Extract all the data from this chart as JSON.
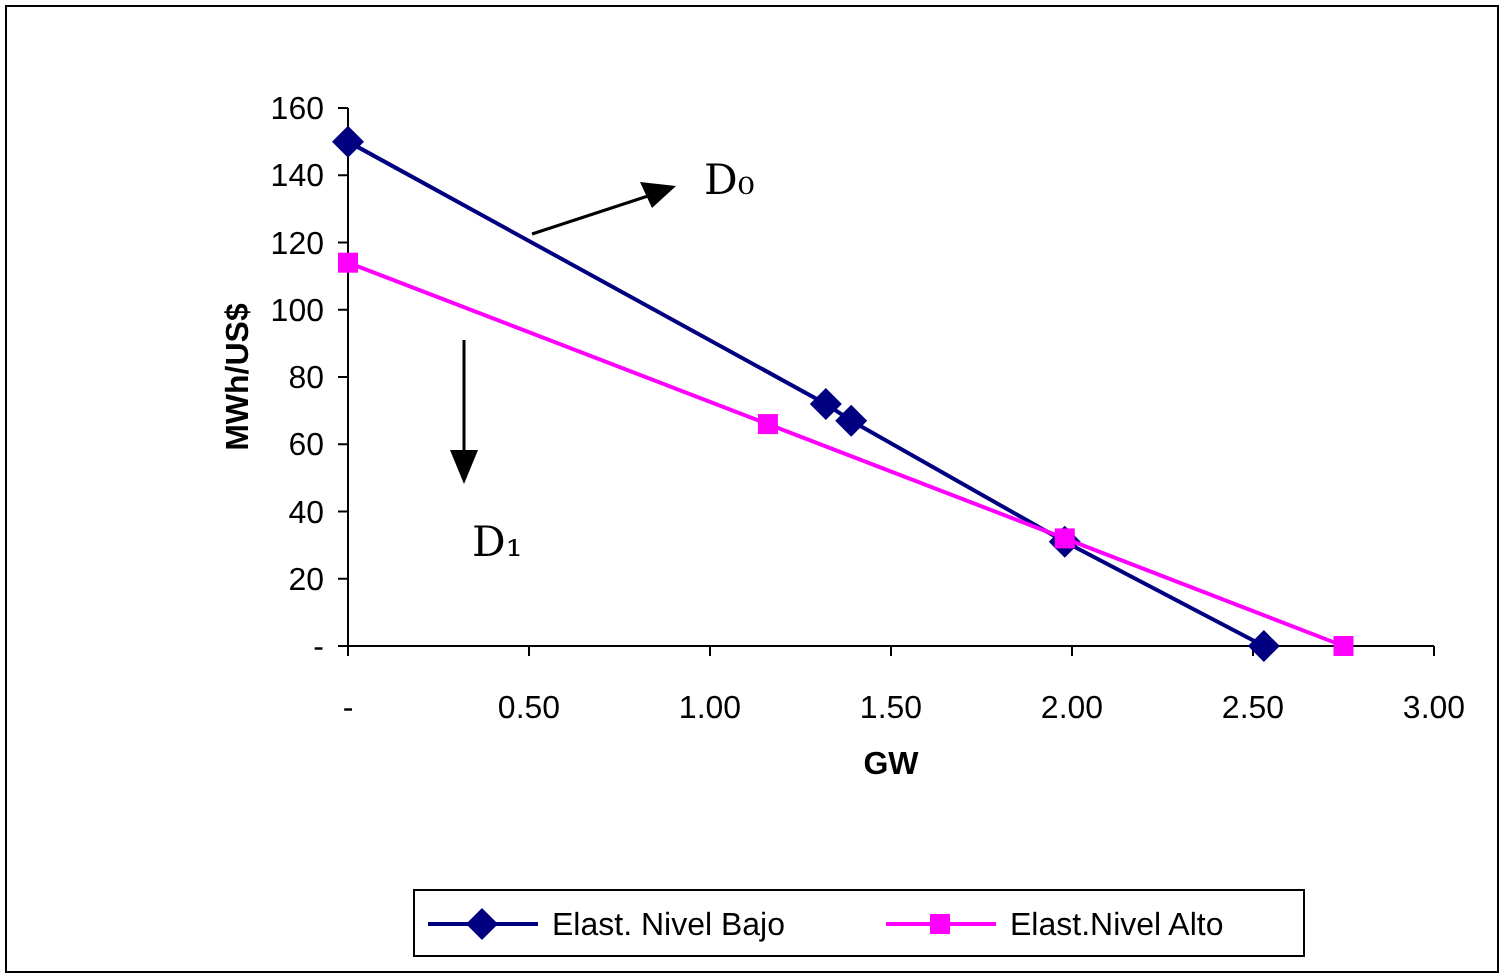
{
  "chart_data": {
    "type": "line",
    "xlabel": "GW",
    "ylabel": "MWh/US$",
    "series": [
      {
        "name": "Elast. Nivel Bajo",
        "color": "#000080",
        "marker": "diamond",
        "x": [
          0,
          1.32,
          1.39,
          1.98,
          2.53
        ],
        "values": [
          150,
          72,
          67,
          31,
          0
        ]
      },
      {
        "name": "Elast.Nivel Alto",
        "color": "#ff00ff",
        "marker": "square",
        "x": [
          0,
          1.16,
          1.98,
          2.75
        ],
        "values": [
          114,
          66,
          32,
          0
        ]
      }
    ],
    "xlim": [
      0,
      3
    ],
    "xticks": [
      {
        "value": 0,
        "label": "-"
      },
      {
        "value": 0.5,
        "label": "0.50"
      },
      {
        "value": 1,
        "label": "1.00"
      },
      {
        "value": 1.5,
        "label": "1.50"
      },
      {
        "value": 2,
        "label": "2.00"
      },
      {
        "value": 2.5,
        "label": "2.50"
      },
      {
        "value": 3,
        "label": "3.00"
      }
    ],
    "ylim": [
      0,
      160
    ],
    "yticks": [
      {
        "value": 0,
        "label": "-"
      },
      20,
      40,
      60,
      80,
      100,
      120,
      140,
      160
    ],
    "annotations": [
      "D₀",
      "D₁"
    ],
    "grid": false,
    "legend": "bottom"
  }
}
